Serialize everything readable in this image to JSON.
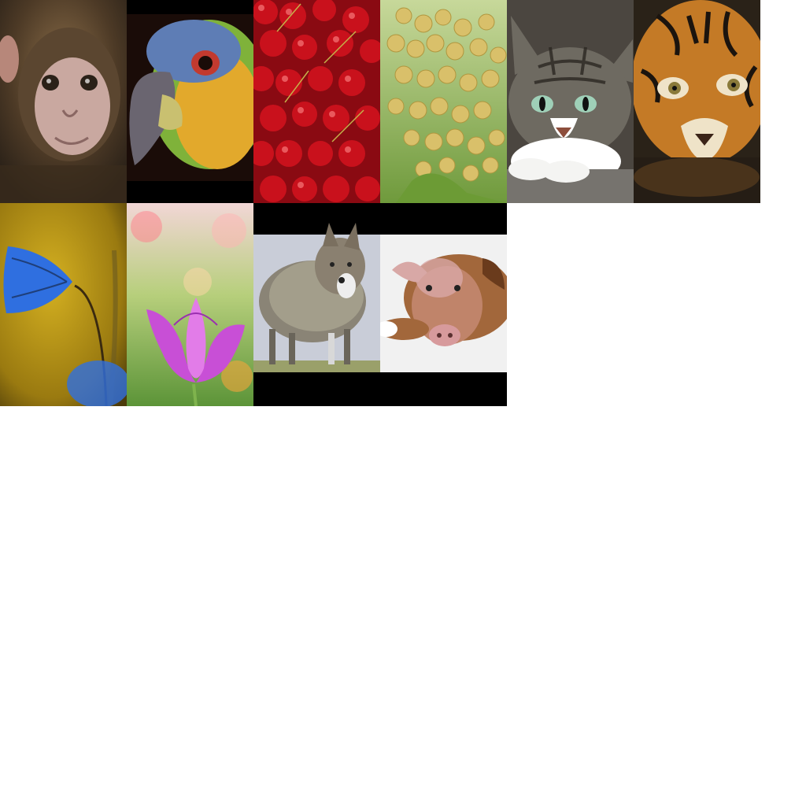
{
  "collage": {
    "background": "#ffffff",
    "rows": [
      [
        {
          "subject": "barbary-macaque-baby",
          "palette": [
            "#5b4630",
            "#c9a8a0",
            "#2a2118"
          ]
        },
        {
          "subject": "amazon-parrot-head",
          "palette": [
            "#7fb23a",
            "#e2a92c",
            "#5e7db5",
            "#000000"
          ]
        },
        {
          "subject": "red-cherries-pile",
          "palette": [
            "#c9111c",
            "#8a0a12",
            "#f26b6e"
          ]
        },
        {
          "subject": "white-grape-bunch",
          "palette": [
            "#d9c06a",
            "#8fb14a",
            "#f1e3a4"
          ]
        },
        {
          "subject": "tabby-cat-lying",
          "palette": [
            "#6e6a61",
            "#ffffff",
            "#9fd0b8"
          ]
        },
        {
          "subject": "tiger-face-in-water",
          "palette": [
            "#c47a26",
            "#1b140e",
            "#efe3c8"
          ]
        }
      ],
      [
        {
          "subject": "blue-bellflower",
          "palette": [
            "#b9930d",
            "#2f6fe0",
            "#1f3f7a"
          ]
        },
        {
          "subject": "pink-tulip",
          "palette": [
            "#c84fd6",
            "#7fb34d",
            "#f2d6d6"
          ]
        },
        {
          "subject": "wolf-in-sheeps-clothing",
          "palette": [
            "#8a8476",
            "#c9cdd8",
            "#000000"
          ]
        },
        {
          "subject": "dog-pig-hybrid",
          "palette": [
            "#a2673b",
            "#d8a8a6",
            "#f1f1f1",
            "#000000"
          ]
        }
      ]
    ]
  }
}
